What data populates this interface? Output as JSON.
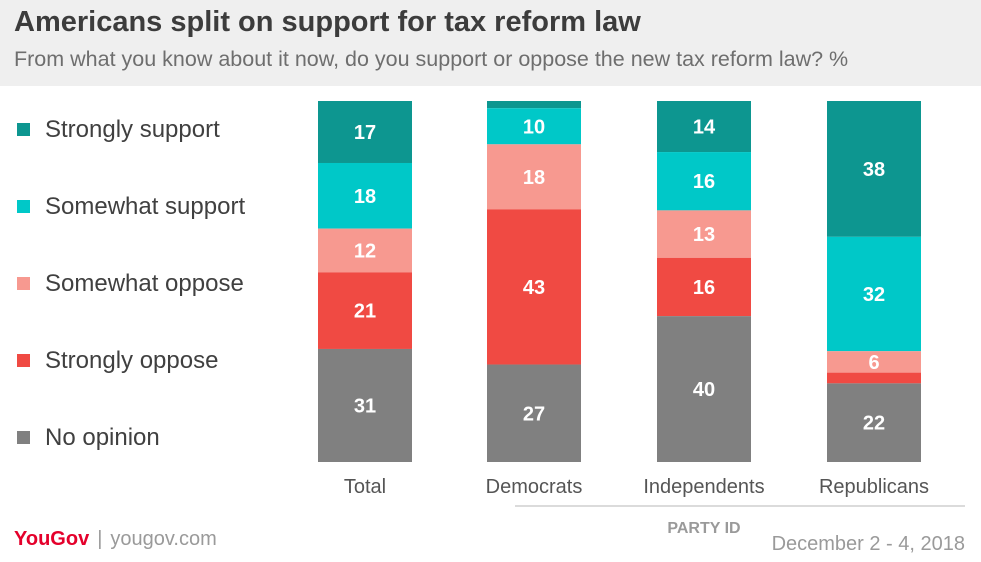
{
  "title": "Americans split on support for tax reform law",
  "subtitle": "From what you know about it now, do you support or oppose the new tax reform law? %",
  "footer": {
    "brand": "YouGov",
    "separator": "|",
    "url": "yougov.com",
    "date": "December 2 - 4, 2018"
  },
  "chart_data": {
    "type": "bar",
    "stacked": true,
    "categories": [
      "Total",
      "Democrats",
      "Independents",
      "Republicans"
    ],
    "group_label": "PARTY ID",
    "legend_position": "left",
    "grid": false,
    "series": [
      {
        "name": "Strongly support",
        "color": "#0d9690",
        "values": [
          17,
          2,
          14,
          38
        ]
      },
      {
        "name": "Somewhat support",
        "color": "#00c8c8",
        "values": [
          18,
          10,
          16,
          32
        ]
      },
      {
        "name": "Somewhat oppose",
        "color": "#f79990",
        "values": [
          12,
          18,
          13,
          6
        ]
      },
      {
        "name": "Strongly oppose",
        "color": "#f04a43",
        "values": [
          21,
          43,
          16,
          3
        ]
      },
      {
        "name": "No opinion",
        "color": "#808080",
        "values": [
          31,
          27,
          40,
          22
        ]
      }
    ],
    "hidden_labels": [
      [
        1,
        0
      ],
      [
        3,
        3
      ]
    ]
  }
}
